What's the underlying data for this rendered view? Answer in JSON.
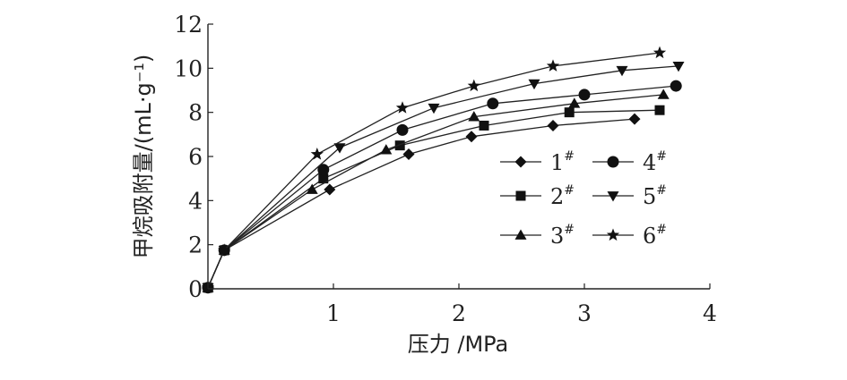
{
  "chart_data": {
    "type": "line",
    "title": "",
    "xlabel": "压力 /MPa",
    "ylabel": "甲烷吸附量/(mL·g⁻¹)",
    "xlim": [
      0,
      4
    ],
    "ylim": [
      0,
      12
    ],
    "xticks": [
      {
        "value": 1,
        "label": "1"
      },
      {
        "value": 2,
        "label": "2"
      },
      {
        "value": 3,
        "label": "3"
      },
      {
        "value": 4,
        "label": "4"
      }
    ],
    "yticks": [
      {
        "value": 0,
        "label": "0"
      },
      {
        "value": 2,
        "label": "2"
      },
      {
        "value": 4,
        "label": "4"
      },
      {
        "value": 6,
        "label": "6"
      },
      {
        "value": 8,
        "label": "8"
      },
      {
        "value": 10,
        "label": "10"
      },
      {
        "value": 12,
        "label": "12"
      }
    ],
    "grid": false,
    "legend_position": "right",
    "series": [
      {
        "name": "1",
        "marker": "diamond",
        "x": [
          0.0,
          0.13,
          0.97,
          1.6,
          2.1,
          2.75,
          3.4
        ],
        "y": [
          0.05,
          1.75,
          4.5,
          6.1,
          6.9,
          7.4,
          7.7
        ]
      },
      {
        "name": "2",
        "marker": "square",
        "x": [
          0.0,
          0.13,
          0.92,
          1.53,
          2.2,
          2.88,
          3.6
        ],
        "y": [
          0.05,
          1.75,
          5.0,
          6.5,
          7.4,
          8.0,
          8.1
        ]
      },
      {
        "name": "3",
        "marker": "triangle-up",
        "x": [
          0.0,
          0.13,
          0.83,
          1.42,
          2.12,
          2.92,
          3.63
        ],
        "y": [
          0.05,
          1.75,
          4.5,
          6.3,
          7.8,
          8.4,
          8.8
        ]
      },
      {
        "name": "4",
        "marker": "circle",
        "x": [
          0.0,
          0.13,
          0.92,
          1.55,
          2.27,
          3.0,
          3.73
        ],
        "y": [
          0.05,
          1.75,
          5.4,
          7.2,
          8.4,
          8.8,
          9.2
        ]
      },
      {
        "name": "5",
        "marker": "triangle-down",
        "x": [
          0.0,
          0.13,
          1.05,
          1.8,
          2.6,
          3.3,
          3.75
        ],
        "y": [
          0.05,
          1.75,
          6.4,
          8.2,
          9.3,
          9.9,
          10.1
        ]
      },
      {
        "name": "6",
        "marker": "star",
        "x": [
          0.0,
          0.13,
          0.87,
          1.55,
          2.12,
          2.75,
          3.6
        ],
        "y": [
          0.05,
          1.75,
          6.1,
          8.2,
          9.2,
          10.1,
          10.7
        ]
      }
    ]
  }
}
